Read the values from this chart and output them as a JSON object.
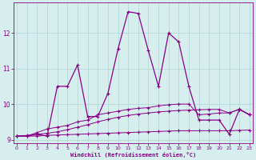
{
  "xlabel": "Windchill (Refroidissement éolien,°C)",
  "background_color": "#d6eeee",
  "grid_color": "#aed4d4",
  "line_color": "#880088",
  "x": [
    0,
    1,
    2,
    3,
    4,
    5,
    6,
    7,
    8,
    9,
    10,
    11,
    12,
    13,
    14,
    15,
    16,
    17,
    18,
    19,
    20,
    21,
    22,
    23
  ],
  "y_spiky": [
    9.1,
    9.1,
    9.15,
    9.1,
    10.5,
    10.5,
    11.1,
    9.65,
    9.65,
    10.3,
    11.55,
    12.6,
    12.55,
    11.5,
    10.5,
    12.0,
    11.75,
    10.5,
    9.55,
    9.55,
    9.55,
    9.15,
    9.85,
    9.7
  ],
  "y_slow": [
    9.1,
    9.1,
    9.2,
    9.3,
    9.35,
    9.4,
    9.5,
    9.55,
    9.7,
    9.75,
    9.8,
    9.85,
    9.88,
    9.9,
    9.95,
    9.98,
    10.0,
    10.0,
    9.7,
    9.72,
    9.75,
    9.75,
    9.85,
    9.7
  ],
  "y_flat": [
    9.1,
    9.1,
    9.1,
    9.12,
    9.13,
    9.14,
    9.15,
    9.16,
    9.17,
    9.18,
    9.19,
    9.2,
    9.21,
    9.22,
    9.23,
    9.24,
    9.25,
    9.25,
    9.25,
    9.25,
    9.25,
    9.25,
    9.26,
    9.27
  ],
  "y_linear": [
    9.1,
    9.12,
    9.15,
    9.18,
    9.22,
    9.28,
    9.35,
    9.42,
    9.5,
    9.57,
    9.63,
    9.68,
    9.72,
    9.75,
    9.78,
    9.8,
    9.82,
    9.83,
    9.84,
    9.85,
    9.85,
    9.75,
    9.86,
    9.7
  ],
  "ylim": [
    8.9,
    12.85
  ],
  "xlim": [
    -0.3,
    23.3
  ],
  "yticks": [
    9,
    10,
    11,
    12
  ],
  "xticks": [
    0,
    1,
    2,
    3,
    4,
    5,
    6,
    7,
    8,
    9,
    10,
    11,
    12,
    13,
    14,
    15,
    16,
    17,
    18,
    19,
    20,
    21,
    22,
    23
  ]
}
